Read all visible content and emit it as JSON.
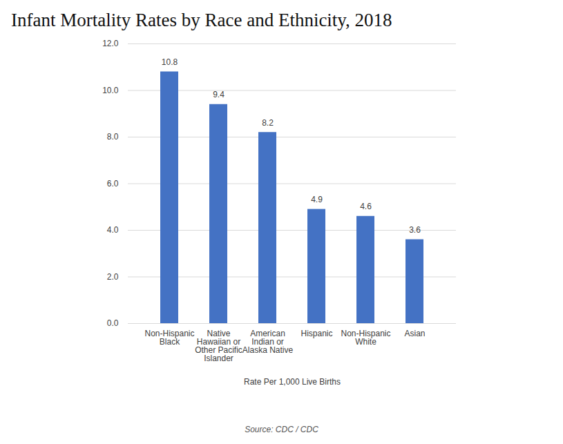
{
  "chart_data": {
    "type": "bar",
    "title": "Infant Mortality Rates by Race and Ethnicity, 2018",
    "x_label": "Rate Per 1,000 Live Births",
    "source": "Source: CDC / CDC",
    "categories": [
      "Non-Hispanic Black",
      "Native Hawaiian or Other Pacific Islander",
      "American Indian or Alaska Native",
      "Hispanic",
      "Non-Hispanic White",
      "Asian"
    ],
    "values": [
      10.8,
      9.4,
      8.2,
      4.9,
      4.6,
      3.6
    ],
    "color": "#4472c4",
    "ylim": [
      0,
      12
    ],
    "yticks": [
      {
        "value": 0,
        "label": "0.0"
      },
      {
        "value": 2,
        "label": "2.0"
      },
      {
        "value": 4,
        "label": "4.0"
      },
      {
        "value": 6,
        "label": "6.0"
      },
      {
        "value": 8,
        "label": "8.0"
      },
      {
        "value": 10,
        "label": "10.0"
      },
      {
        "value": 12,
        "label": "12.0"
      }
    ],
    "grid": true,
    "data_labels": true
  }
}
